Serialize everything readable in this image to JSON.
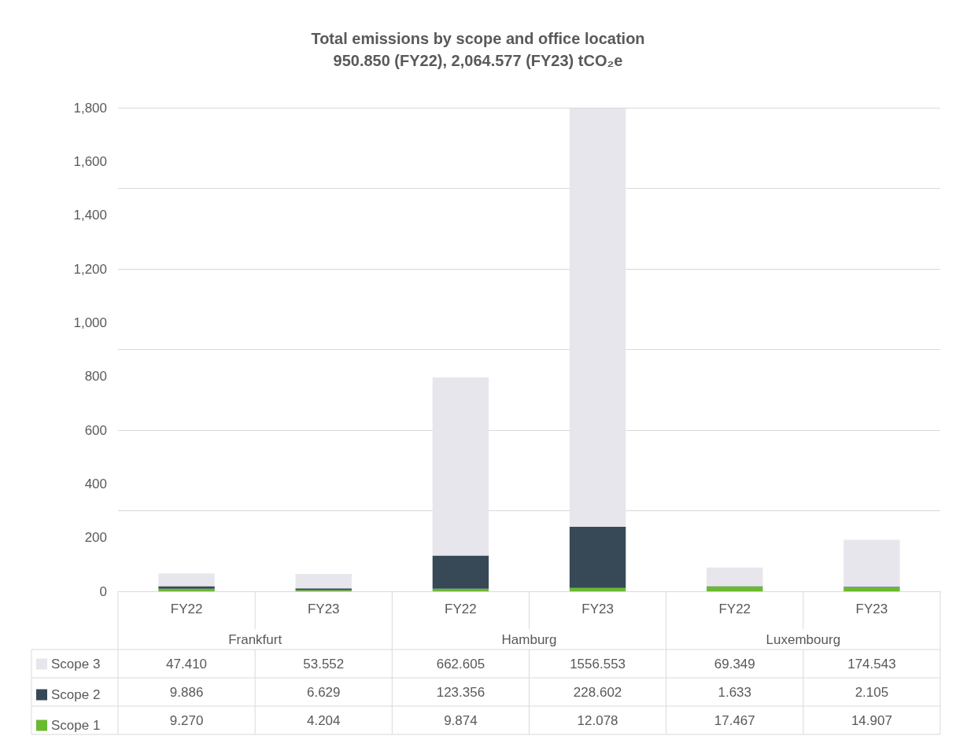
{
  "chart_data": {
    "type": "bar",
    "title": "Total emissions by scope and office location",
    "subtitle": "950.850 (FY22), 2,064.577 (FY23) tCO₂e",
    "categories": [
      "FY22",
      "FY23",
      "FY22",
      "FY23",
      "FY22",
      "FY23"
    ],
    "annotations": [
      "Frankfurt",
      "Hamburg",
      "Luxembourg"
    ],
    "stacked": true,
    "series": [
      {
        "name": "Scope 1",
        "color": "#6aba2f",
        "values": [
          9.27,
          4.204,
          9.874,
          12.078,
          17.467,
          14.907
        ],
        "value_labels": [
          "9.270",
          "4.204",
          "9.874",
          "12.078",
          "17.467",
          "14.907"
        ]
      },
      {
        "name": "Scope 2",
        "color": "#374957",
        "values": [
          9.886,
          6.629,
          123.356,
          228.602,
          1.633,
          2.105
        ],
        "value_labels": [
          "9.886",
          "6.629",
          "123.356",
          "228.602",
          "1.633",
          "2.105"
        ]
      },
      {
        "name": "Scope 3",
        "color": "#e7e6ec",
        "values": [
          47.41,
          53.552,
          662.605,
          1556.553,
          69.349,
          174.543
        ],
        "value_labels": [
          "47.410",
          "53.552",
          "662.605",
          "1556.553",
          "69.349",
          "174.543"
        ]
      }
    ],
    "ylim": [
      0,
      1800
    ],
    "yticks": [
      0,
      200,
      400,
      600,
      800,
      {
        "value": 1000,
        "label": "1,000"
      },
      {
        "value": 1200,
        "label": "1,200"
      },
      {
        "value": 1400,
        "label": "1,400"
      },
      {
        "value": 1600,
        "label": "1,600"
      },
      {
        "value": 1800,
        "label": "1,800"
      }
    ],
    "grid": "y",
    "legend": "bottom left"
  }
}
